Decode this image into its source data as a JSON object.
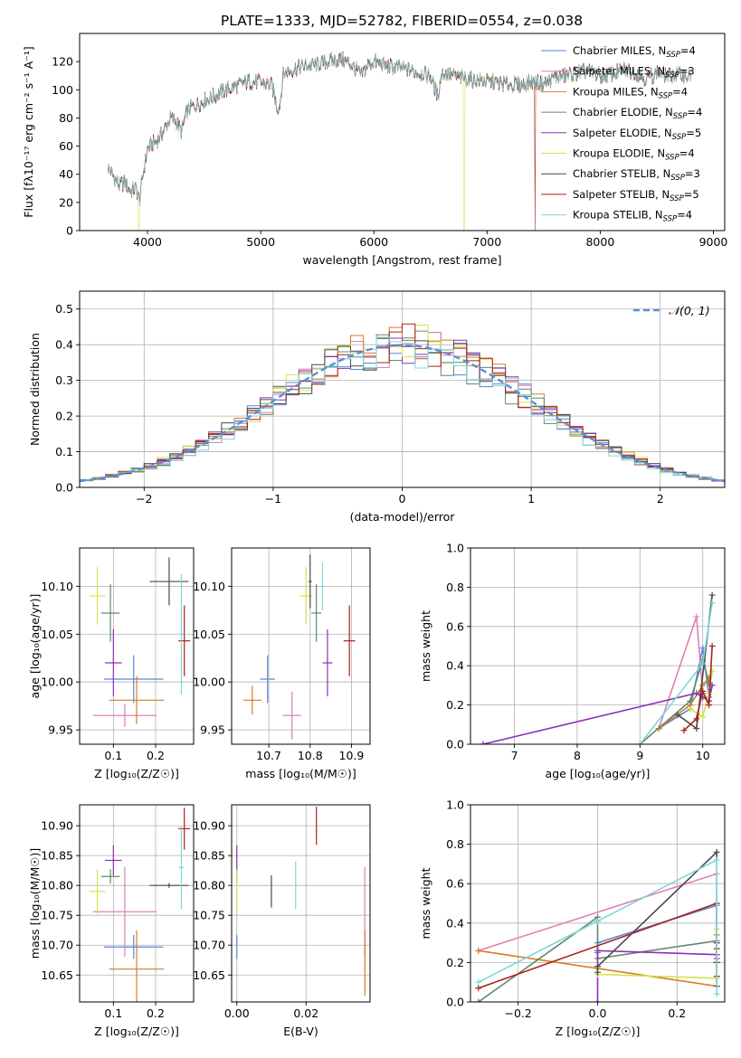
{
  "figure": {
    "title": "PLATE=1333, MJD=52782, FIBERID=0554, z=0.038"
  },
  "colors": {
    "chabrier_miles": "#5b86dc",
    "salpeter_miles": "#e07fb8",
    "kroupa_miles": "#d87c24",
    "chabrier_elodie": "#5e8a6a",
    "salpeter_elodie": "#8e2fb3",
    "kroupa_elodie": "#d4e24c",
    "chabrier_stelib": "#4a4a4a",
    "salpeter_stelib": "#a8221c",
    "kroupa_stelib": "#7fd6d9",
    "gaussian": "#5b8fd6"
  },
  "chart_data": [
    {
      "id": "spectrum",
      "type": "line",
      "title": "PLATE=1333, MJD=52782, FIBERID=0554, z=0.038",
      "xlabel": "wavelength [Angstrom, rest frame]",
      "ylabel": "Flux [fλ10⁻¹⁷ erg cm⁻² s⁻¹ A⁻¹]",
      "xlim": [
        3400,
        9100
      ],
      "ylim": [
        0,
        140
      ],
      "xticks": [
        4000,
        5000,
        6000,
        7000,
        8000,
        9000
      ],
      "yticks": [
        0,
        20,
        40,
        60,
        80,
        100,
        120
      ],
      "legend": "right",
      "shape": {
        "x": [
          3650,
          3700,
          3750,
          3800,
          3850,
          3900,
          3930,
          3960,
          4000,
          4050,
          4100,
          4150,
          4200,
          4250,
          4300,
          4350,
          4400,
          4500,
          4600,
          4700,
          4800,
          4900,
          5000,
          5100,
          5150,
          5170,
          5200,
          5300,
          5400,
          5500,
          5600,
          5700,
          5800,
          5890,
          5950,
          6000,
          6100,
          6200,
          6300,
          6400,
          6500,
          6563,
          6600,
          6700,
          6800,
          6900,
          7000,
          7100,
          7200,
          7300,
          7400,
          7500,
          7600,
          7700,
          7800,
          7900,
          8000,
          8100,
          8200,
          8300,
          8400,
          8500,
          8600,
          8700,
          8800
        ],
        "y": [
          45,
          38,
          32,
          34,
          28,
          30,
          22,
          40,
          58,
          62,
          65,
          72,
          80,
          78,
          70,
          85,
          88,
          92,
          96,
          100,
          103,
          106,
          105,
          103,
          86,
          90,
          112,
          115,
          117,
          118,
          120,
          122,
          118,
          110,
          118,
          120,
          117,
          116,
          114,
          112,
          110,
          95,
          112,
          110,
          108,
          107,
          106,
          105,
          104,
          103,
          106,
          104,
          109,
          110,
          112,
          113,
          110,
          111,
          114,
          113,
          108,
          112,
          110,
          111,
          109
        ]
      },
      "series": [
        {
          "name": "Chabrier MILES, N_SSP=4",
          "dropout": null
        },
        {
          "name": "Salpeter MILES, N_SSP=3",
          "dropout": null
        },
        {
          "name": "Kroupa MILES, N_SSP=4",
          "dropout": null
        },
        {
          "name": "Chabrier ELODIE, N_SSP=4",
          "dropout": null
        },
        {
          "name": "Salpeter ELODIE, N_SSP=5",
          "dropout": null
        },
        {
          "name": "Kroupa ELODIE, N_SSP=4",
          "dropout": [
            3920,
            6800
          ]
        },
        {
          "name": "Chabrier STELIB, N_SSP=3",
          "dropout": null
        },
        {
          "name": "Salpeter STELIB, N_SSP=5",
          "dropout": [
            7420,
            9100
          ]
        },
        {
          "name": "Kroupa STELIB, N_SSP=4",
          "dropout": null
        }
      ]
    },
    {
      "id": "residuals",
      "type": "line",
      "xlabel": "(data-model)/error",
      "ylabel": "Normed distribution",
      "xlim": [
        -2.5,
        2.5
      ],
      "ylim": [
        0,
        0.55
      ],
      "xticks": [
        -2,
        -1,
        0,
        1,
        2
      ],
      "yticks": [
        0.0,
        0.1,
        0.2,
        0.3,
        0.4,
        0.5
      ],
      "grid": true,
      "legend": "top-right",
      "legend_label": "𝒩(0, 1)",
      "bin_width": 0.1,
      "histogram_scatter": [
        0.01,
        -0.03,
        0.04,
        -0.05,
        0.02,
        0.06,
        -0.02,
        0.03,
        -0.04
      ]
    },
    {
      "id": "age_vs_Z",
      "type": "scatter",
      "xlabel": "Z [log₁₀(Z/Z☉)]",
      "ylabel": "age  [log₁₀(age/yr)]",
      "xlim": [
        0.02,
        0.29
      ],
      "ylim": [
        9.935,
        10.14
      ],
      "xticks": [
        0.1,
        0.2
      ],
      "yticks": [
        9.95,
        10.0,
        10.05,
        10.1
      ],
      "grid": true,
      "points": [
        {
          "x": 0.148,
          "y": 10.003,
          "xerr": 0.07,
          "yerr": 0.025
        },
        {
          "x": 0.127,
          "y": 9.965,
          "xerr": 0.075,
          "yerr": 0.012
        },
        {
          "x": 0.155,
          "y": 9.981,
          "xerr": 0.065,
          "yerr": 0.025
        },
        {
          "x": 0.093,
          "y": 10.072,
          "xerr": 0.022,
          "yerr": 0.03
        },
        {
          "x": 0.1,
          "y": 10.02,
          "xerr": 0.02,
          "yerr": 0.035
        },
        {
          "x": 0.062,
          "y": 10.09,
          "xerr": 0.019,
          "yerr": 0.03
        },
        {
          "x": 0.232,
          "y": 10.105,
          "xerr": 0.046,
          "yerr": 0.025
        },
        {
          "x": 0.268,
          "y": 10.043,
          "xerr": 0.014,
          "yerr": 0.037
        },
        {
          "x": 0.261,
          "y": 10.05,
          "xerr": 0.006,
          "yerr": 0.063
        }
      ]
    },
    {
      "id": "age_vs_mass",
      "type": "scatter",
      "xlabel": "mass [log₁₀(M/M☉)]",
      "ylabel": "",
      "xlim": [
        10.61,
        10.945
      ],
      "ylim": [
        9.935,
        10.14
      ],
      "xticks": [
        10.7,
        10.8,
        10.9
      ],
      "yticks": [
        9.95,
        10.0,
        10.05,
        10.1
      ],
      "grid": true,
      "points": [
        {
          "x": 10.697,
          "y": 10.003,
          "xerr": 0.018,
          "yerr": 0.025
        },
        {
          "x": 10.756,
          "y": 9.965,
          "xerr": 0.022,
          "yerr": 0.025
        },
        {
          "x": 10.66,
          "y": 9.981,
          "xerr": 0.022,
          "yerr": 0.015
        },
        {
          "x": 10.815,
          "y": 10.072,
          "xerr": 0.012,
          "yerr": 0.03
        },
        {
          "x": 10.842,
          "y": 10.02,
          "xerr": 0.012,
          "yerr": 0.035
        },
        {
          "x": 10.79,
          "y": 10.09,
          "xerr": 0.016,
          "yerr": 0.03
        },
        {
          "x": 10.8,
          "y": 10.105,
          "xerr": 0.004,
          "yerr": 0.028
        },
        {
          "x": 10.895,
          "y": 10.043,
          "xerr": 0.014,
          "yerr": 0.037
        },
        {
          "x": 10.83,
          "y": 10.1,
          "xerr": 0.005,
          "yerr": 0.025
        }
      ]
    },
    {
      "id": "weight_vs_age",
      "type": "line",
      "xlabel": "age  [log₁₀(age/yr)]",
      "ylabel": "mass weight",
      "xlim": [
        6.3,
        10.35
      ],
      "ylim": [
        0,
        1.0
      ],
      "xticks": [
        7,
        8,
        9,
        10
      ],
      "yticks": [
        0.0,
        0.2,
        0.4,
        0.6,
        0.8,
        1.0
      ],
      "grid": true,
      "series": [
        {
          "x": [
            9.3,
            9.8,
            10.0,
            10.1
          ],
          "y": [
            0.08,
            0.18,
            0.49,
            0.24
          ]
        },
        {
          "x": [
            9.3,
            9.9,
            10.0
          ],
          "y": [
            0.08,
            0.65,
            0.26
          ]
        },
        {
          "x": [
            9.3,
            9.8,
            10.0,
            10.1
          ],
          "y": [
            0.08,
            0.2,
            0.3,
            0.34
          ]
        },
        {
          "x": [
            9.0,
            9.8,
            10.0,
            10.1
          ],
          "y": [
            0.0,
            0.22,
            0.43,
            0.31
          ]
        },
        {
          "x": [
            6.5,
            9.9,
            10.0,
            10.1,
            10.15
          ],
          "y": [
            0.0,
            0.26,
            0.24,
            0.22,
            0.3
          ]
        },
        {
          "x": [
            9.8,
            10.0,
            10.1,
            10.15
          ],
          "y": [
            0.18,
            0.14,
            0.26,
            0.37
          ]
        },
        {
          "x": [
            9.6,
            9.9,
            10.15
          ],
          "y": [
            0.15,
            0.08,
            0.76
          ]
        },
        {
          "x": [
            9.7,
            9.9,
            10.0,
            10.1,
            10.15
          ],
          "y": [
            0.07,
            0.13,
            0.27,
            0.2,
            0.5
          ]
        },
        {
          "x": [
            9.0,
            10.0,
            10.15
          ],
          "y": [
            0.0,
            0.41,
            0.72
          ]
        }
      ]
    },
    {
      "id": "mass_vs_Z",
      "type": "scatter",
      "xlabel": "Z [log₁₀(Z/Z☉)]",
      "ylabel": "mass [log₁₀(M/M☉)]",
      "xlim": [
        0.02,
        0.29
      ],
      "ylim": [
        10.605,
        10.935
      ],
      "xticks": [
        0.1,
        0.2
      ],
      "yticks": [
        10.65,
        10.7,
        10.75,
        10.8,
        10.85,
        10.9
      ],
      "grid": true,
      "points": [
        {
          "x": 0.148,
          "y": 10.697,
          "xerr": 0.07,
          "yerr": 0.02
        },
        {
          "x": 0.127,
          "y": 10.756,
          "xerr": 0.075,
          "yerr": 0.075
        },
        {
          "x": 0.155,
          "y": 10.66,
          "xerr": 0.065,
          "yerr": 0.065
        },
        {
          "x": 0.093,
          "y": 10.815,
          "xerr": 0.022,
          "yerr": 0.012
        },
        {
          "x": 0.1,
          "y": 10.842,
          "xerr": 0.02,
          "yerr": 0.025
        },
        {
          "x": 0.062,
          "y": 10.79,
          "xerr": 0.019,
          "yerr": 0.037
        },
        {
          "x": 0.232,
          "y": 10.8,
          "xerr": 0.046,
          "yerr": 0.004
        },
        {
          "x": 0.268,
          "y": 10.895,
          "xerr": 0.014,
          "yerr": 0.035
        },
        {
          "x": 0.261,
          "y": 10.83,
          "xerr": 0.006,
          "yerr": 0.07
        }
      ]
    },
    {
      "id": "mass_vs_EBV",
      "type": "scatter",
      "xlabel": "E(B-V)",
      "ylabel": "",
      "xlim": [
        -0.0015,
        0.0385
      ],
      "ylim": [
        10.605,
        10.935
      ],
      "xticks": [
        0.0,
        0.02
      ],
      "yticks": [
        10.65,
        10.7,
        10.75,
        10.8,
        10.85,
        10.9
      ],
      "grid": true,
      "points": [
        {
          "x": 0.0,
          "y": 10.697,
          "xerr": 0,
          "yerr": 0.02
        },
        {
          "x": 0.037,
          "y": 10.756,
          "xerr": 0,
          "yerr": 0.075
        },
        {
          "x": 0.037,
          "y": 10.67,
          "xerr": 0,
          "yerr": 0.055
        },
        {
          "x": 0.0,
          "y": 10.815,
          "xerr": 0,
          "yerr": 0.012
        },
        {
          "x": 0.0,
          "y": 10.845,
          "xerr": 0,
          "yerr": 0.022
        },
        {
          "x": 0.0,
          "y": 10.79,
          "xerr": 0,
          "yerr": 0.037
        },
        {
          "x": 0.01,
          "y": 10.79,
          "xerr": 0,
          "yerr": 0.027
        },
        {
          "x": 0.023,
          "y": 10.9,
          "xerr": 0,
          "yerr": 0.032
        },
        {
          "x": 0.017,
          "y": 10.8,
          "xerr": 0,
          "yerr": 0.04
        }
      ]
    },
    {
      "id": "weight_vs_Z",
      "type": "line",
      "xlabel": "Z [log₁₀(Z/Z☉)]",
      "ylabel": "mass weight",
      "xlim": [
        -0.32,
        0.32
      ],
      "ylim": [
        0,
        1.0
      ],
      "xticks": [
        -0.2,
        0.0,
        0.2
      ],
      "yticks": [
        0.0,
        0.2,
        0.4,
        0.6,
        0.8,
        1.0
      ],
      "grid": true,
      "series": [
        {
          "x": [
            0.0,
            0.0,
            0.3,
            0.3,
            0.3
          ],
          "y": [
            0.25,
            0.3,
            0.49,
            0.24,
            0.2
          ]
        },
        {
          "x": [
            -0.3,
            0.3,
            0.3
          ],
          "y": [
            0.26,
            0.65,
            0.08
          ]
        },
        {
          "x": [
            -0.3,
            0.3,
            0.3,
            0.3
          ],
          "y": [
            0.26,
            0.08,
            0.34,
            0.3
          ]
        },
        {
          "x": [
            -0.3,
            0.0,
            0.0,
            0.3
          ],
          "y": [
            0.0,
            0.43,
            0.22,
            0.31
          ]
        },
        {
          "x": [
            0.0,
            0.0,
            0.3,
            0.3,
            0.3
          ],
          "y": [
            0.0,
            0.26,
            0.24,
            0.22,
            0.3
          ]
        },
        {
          "x": [
            0.0,
            0.0,
            0.3,
            0.3
          ],
          "y": [
            0.18,
            0.14,
            0.12,
            0.37
          ]
        },
        {
          "x": [
            0.0,
            0.0,
            0.3,
            0.3
          ],
          "y": [
            0.15,
            0.18,
            0.76,
            0.08
          ]
        },
        {
          "x": [
            -0.3,
            0.3,
            0.3,
            0.3,
            0.3
          ],
          "y": [
            0.07,
            0.5,
            0.13,
            0.27,
            0.2
          ]
        },
        {
          "x": [
            -0.3,
            0.0,
            0.3,
            0.3
          ],
          "y": [
            0.1,
            0.41,
            0.72,
            0.04
          ]
        }
      ]
    }
  ]
}
